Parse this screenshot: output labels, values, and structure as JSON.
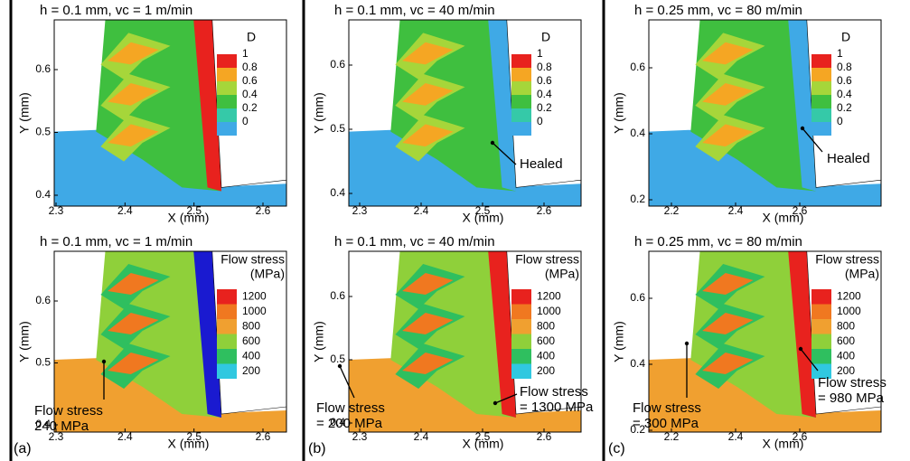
{
  "panels": [
    {
      "label": "(a)",
      "plots": [
        {
          "title": "h = 0.1 mm, vc = 1 m/min",
          "xlabel": "X (mm)",
          "ylabel": "Y (mm)",
          "xticks": [
            2.3,
            2.4,
            2.5,
            2.6
          ],
          "yticks": [
            0.6,
            0.5,
            0.4
          ],
          "legend": {
            "title": [
              "D"
            ],
            "labels": [
              1,
              0.8,
              0.6,
              0.4,
              0.2,
              0
            ]
          },
          "annotations": []
        },
        {
          "title": "h = 0.1 mm, vc = 1 m/min",
          "xlabel": "X (mm)",
          "ylabel": "Y (mm)",
          "xticks": [
            2.3,
            2.4,
            2.5,
            2.6
          ],
          "yticks": [
            0.6,
            0.5,
            0.4
          ],
          "legend": {
            "title": [
              "Flow stress",
              "(MPa)"
            ],
            "labels": [
              1200,
              1000,
              800,
              600,
              400,
              200
            ]
          },
          "annotations": [
            [
              "Flow stress",
              "240 MPa"
            ]
          ]
        }
      ]
    },
    {
      "label": "(b)",
      "plots": [
        {
          "title": "h = 0.1 mm, vc = 40 m/min",
          "xlabel": "X (mm)",
          "ylabel": "Y (mm)",
          "xticks": [
            2.3,
            2.4,
            2.5,
            2.6
          ],
          "yticks": [
            0.6,
            0.5,
            0.4
          ],
          "legend": {
            "title": [
              "D"
            ],
            "labels": [
              1,
              0.8,
              0.6,
              0.4,
              0.2,
              0
            ]
          },
          "annotations": [
            [
              "Healed"
            ]
          ]
        },
        {
          "title": "h = 0.1 mm, vc = 40 m/min",
          "xlabel": "X (mm)",
          "ylabel": "Y (mm)",
          "xticks": [
            2.3,
            2.4,
            2.5,
            2.6
          ],
          "yticks": [
            0.6,
            0.5,
            0.4
          ],
          "legend": {
            "title": [
              "Flow stress",
              "(MPa)"
            ],
            "labels": [
              1200,
              1000,
              800,
              600,
              400,
              200
            ]
          },
          "annotations": [
            [
              "Flow stress",
              "= 200 MPa"
            ],
            [
              "Flow stress",
              "= 1300 MPa"
            ]
          ]
        }
      ]
    },
    {
      "label": "(c)",
      "plots": [
        {
          "title": "h = 0.25 mm, vc = 80 m/min",
          "xlabel": "X (mm)",
          "ylabel": "Y (mm)",
          "xticks": [
            2.2,
            2.4,
            2.6
          ],
          "yticks": [
            0.6,
            0.4,
            0.2
          ],
          "legend": {
            "title": [
              "D"
            ],
            "labels": [
              1,
              0.8,
              0.6,
              0.4,
              0.2,
              0
            ]
          },
          "annotations": [
            [
              "Healed"
            ]
          ]
        },
        {
          "title": "h = 0.25 mm, vc = 80 m/min",
          "xlabel": "X (mm)",
          "ylabel": "Y (mm)",
          "xticks": [
            2.2,
            2.4,
            2.6
          ],
          "yticks": [
            0.6,
            0.4,
            0.2
          ],
          "legend": {
            "title": [
              "Flow stress",
              "(MPa)"
            ],
            "labels": [
              1200,
              1000,
              800,
              600,
              400,
              200
            ]
          },
          "annotations": [
            [
              "Flow stress",
              "= 300 MPa"
            ],
            [
              "Flow stress",
              "= 980 MPa"
            ]
          ]
        }
      ]
    }
  ]
}
